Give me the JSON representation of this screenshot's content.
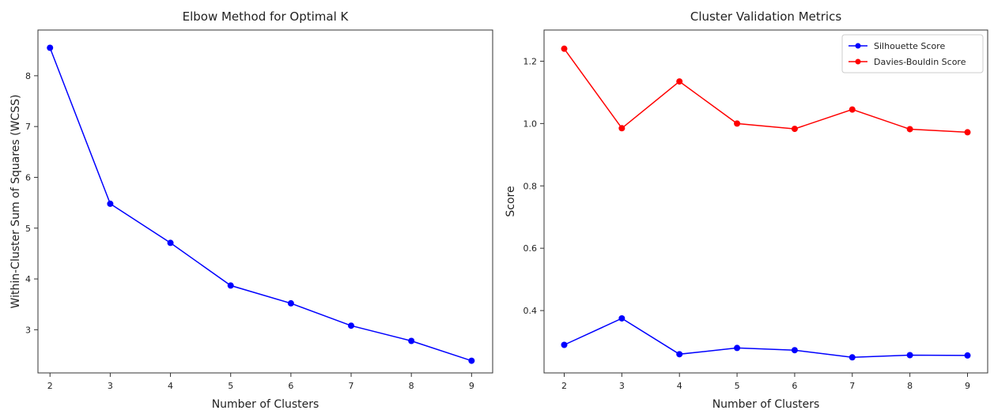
{
  "chart_data": [
    {
      "type": "line",
      "title": "Elbow Method for Optimal K",
      "xlabel": "Number of Clusters",
      "ylabel": "Within-Cluster Sum of Squares (WCSS)",
      "x": [
        2,
        3,
        4,
        5,
        6,
        7,
        8,
        9
      ],
      "xlim": [
        1.8,
        9.35
      ],
      "ylim": [
        2.15,
        8.9
      ],
      "xticks": [
        2,
        3,
        4,
        5,
        6,
        7,
        8,
        9
      ],
      "yticks": [
        3,
        4,
        5,
        6,
        7,
        8
      ],
      "grid": false,
      "series": [
        {
          "values": [
            8.55,
            5.48,
            4.71,
            3.87,
            3.52,
            3.08,
            2.78,
            2.39
          ],
          "color": "#0000ff",
          "marker": "circle"
        }
      ]
    },
    {
      "type": "line",
      "title": "Cluster Validation Metrics",
      "xlabel": "Number of Clusters",
      "ylabel": "Score",
      "x": [
        2,
        3,
        4,
        5,
        6,
        7,
        8,
        9
      ],
      "xlim": [
        1.65,
        9.35
      ],
      "ylim": [
        0.2,
        1.3
      ],
      "xticks": [
        2,
        3,
        4,
        5,
        6,
        7,
        8,
        9
      ],
      "yticks": [
        0.4,
        0.6,
        0.8,
        1.0,
        1.2
      ],
      "grid": false,
      "legend_position": "top-right",
      "series": [
        {
          "name": "Silhouette Score",
          "values": [
            0.29,
            0.375,
            0.26,
            0.28,
            0.273,
            0.25,
            0.257,
            0.256
          ],
          "color": "#0000ff",
          "marker": "circle"
        },
        {
          "name": "Davies-Bouldin Score",
          "values": [
            1.24,
            0.985,
            1.135,
            1.0,
            0.983,
            1.045,
            0.982,
            0.972
          ],
          "color": "#ff0000",
          "marker": "circle"
        }
      ]
    }
  ]
}
